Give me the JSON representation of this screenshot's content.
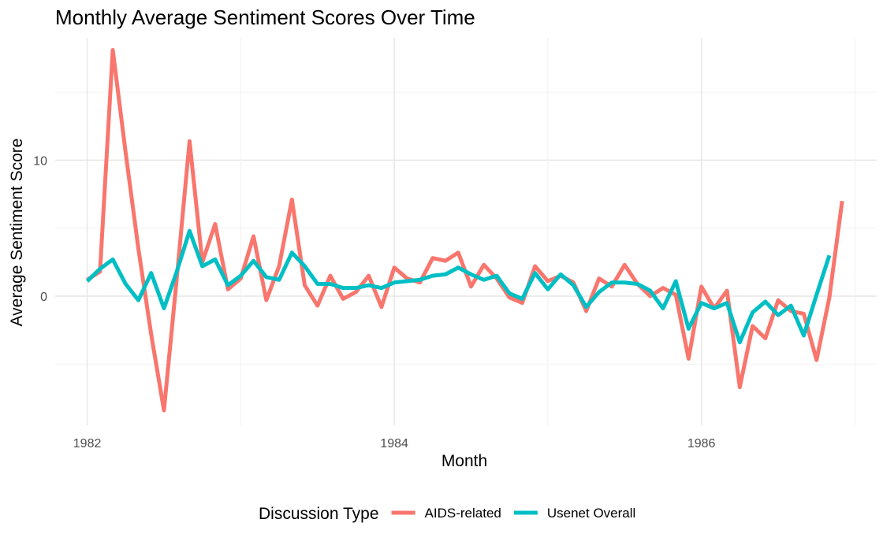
{
  "chart_data": {
    "type": "line",
    "title": "Monthly Average Sentiment Scores Over Time",
    "xlabel": "Month",
    "ylabel": "Average Sentiment Score",
    "x_unit": "month",
    "x_start": "1982-01",
    "x_ticks": [
      {
        "label": "1982",
        "value": "1982-01"
      },
      {
        "label": "1984",
        "value": "1984-01"
      },
      {
        "label": "1986",
        "value": "1986-01"
      }
    ],
    "y_ticks": [
      0,
      10
    ],
    "ylim": [
      -9.5,
      19
    ],
    "grid": true,
    "legend": {
      "title": "Discussion Type",
      "position": "bottom"
    },
    "series": [
      {
        "name": "AIDS-related",
        "color": "#F8766D",
        "values": [
          1.2,
          1.8,
          18.1,
          10.6,
          3.5,
          -2.8,
          -8.4,
          1.3,
          11.4,
          2.5,
          5.3,
          0.5,
          1.3,
          4.4,
          -0.3,
          2.2,
          7.1,
          0.8,
          -0.7,
          1.5,
          -0.2,
          0.3,
          1.5,
          -0.8,
          2.1,
          1.3,
          1.0,
          2.8,
          2.6,
          3.2,
          0.7,
          2.3,
          1.3,
          -0.1,
          -0.5,
          2.2,
          1.1,
          1.5,
          1.0,
          -1.1,
          1.3,
          0.7,
          2.3,
          0.9,
          0.0,
          0.6,
          0.1,
          -4.6,
          0.7,
          -0.9,
          0.4,
          -6.7,
          -2.2,
          -3.1,
          -0.3,
          -1.1,
          -1.3,
          -4.7,
          -0.1,
          7.0
        ]
      },
      {
        "name": "Usenet Overall",
        "color": "#00BFC4",
        "values": [
          1.1,
          2.0,
          2.7,
          0.9,
          -0.3,
          1.7,
          -0.9,
          1.8,
          4.8,
          2.2,
          2.7,
          0.8,
          1.5,
          2.6,
          1.4,
          1.2,
          3.2,
          2.2,
          0.9,
          0.9,
          0.6,
          0.6,
          0.8,
          0.6,
          1.0,
          1.1,
          1.2,
          1.5,
          1.6,
          2.1,
          1.6,
          1.2,
          1.5,
          0.2,
          -0.2,
          1.7,
          0.5,
          1.6,
          0.8,
          -0.8,
          0.3,
          1.0,
          1.0,
          0.9,
          0.4,
          -0.9,
          1.1,
          -2.4,
          -0.5,
          -0.9,
          -0.5,
          -3.4,
          -1.2,
          -0.4,
          -1.4,
          -0.7,
          -2.9,
          0.1,
          3.0
        ]
      }
    ]
  }
}
